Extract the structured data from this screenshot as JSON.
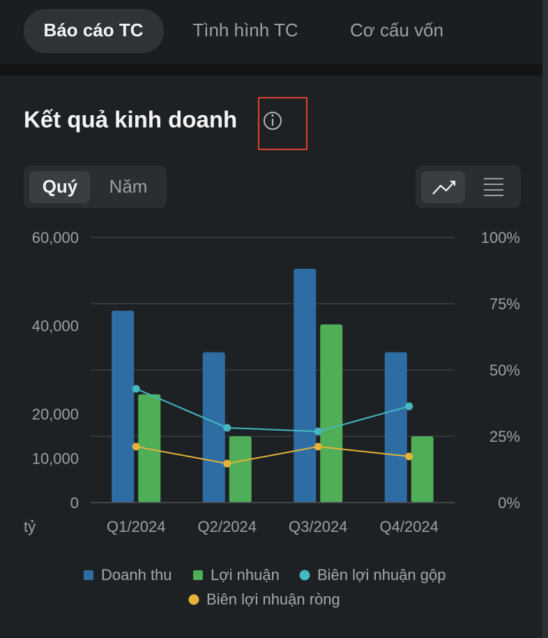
{
  "tabs": [
    "Báo cáo TC",
    "Tình hình TC",
    "Cơ cấu vốn"
  ],
  "active_tab": 0,
  "section_title": "Kết quả kinh doanh",
  "period_toggle": [
    "Quý",
    "Năm"
  ],
  "active_period": 0,
  "chart_data": {
    "type": "bar_line",
    "categories": [
      "Q1/2024",
      "Q2/2024",
      "Q3/2024",
      "Q4/2024"
    ],
    "series": [
      {
        "name": "Doanh thu",
        "type": "bar",
        "color": "#2e6da4",
        "values": [
          43400,
          34000,
          52900,
          34000
        ]
      },
      {
        "name": "Lợi nhuận",
        "type": "bar",
        "color": "#4fae57",
        "values": [
          24500,
          15000,
          40300,
          15000
        ]
      },
      {
        "name": "Biên lợi nhuận gộp",
        "type": "line",
        "axis": "y2",
        "color": "#45b8c0",
        "values": [
          42.9,
          28.2,
          26.8,
          36.3
        ]
      },
      {
        "name": "Biên lợi nhuận ròng",
        "type": "line",
        "axis": "y2",
        "color": "#e5b338",
        "values": [
          21.1,
          14.7,
          21.1,
          17.4
        ]
      }
    ],
    "ylim": [
      0,
      60000
    ],
    "yticks": [
      0,
      {
        "value": 10000,
        "label": "10,000"
      },
      {
        "value": 20000,
        "label": "20,000"
      },
      {
        "value": 40000,
        "label": "40,000"
      },
      {
        "value": 60000,
        "label": "60,000"
      }
    ],
    "y_unit": "tỷ",
    "y2lim": [
      0,
      100
    ],
    "y2ticks": [
      {
        "value": 0,
        "label": "0%"
      },
      {
        "value": 25,
        "label": "25%"
      },
      {
        "value": 50,
        "label": "50%"
      },
      {
        "value": 75,
        "label": "75%"
      },
      {
        "value": 100,
        "label": "100%"
      }
    ],
    "grid": true
  }
}
